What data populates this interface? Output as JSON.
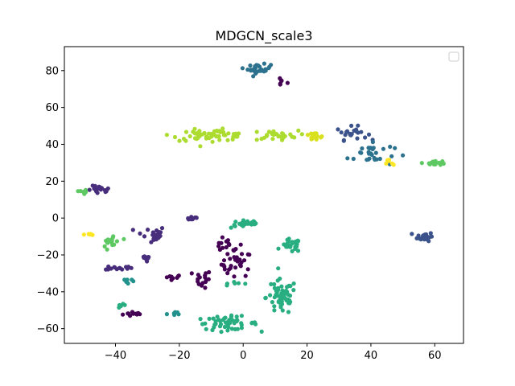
{
  "chart_data": {
    "type": "scatter",
    "title": "MDGCN_scale3",
    "xlim": [
      -56,
      69
    ],
    "ylim": [
      -68,
      93
    ],
    "xticks": [
      -40,
      -20,
      0,
      20,
      40,
      60
    ],
    "yticks": [
      -60,
      -40,
      -20,
      0,
      20,
      40,
      60,
      80
    ],
    "xtick_labels": [
      "−40",
      "−20",
      "0",
      "20",
      "40",
      "60"
    ],
    "ytick_labels": [
      "−60",
      "−40",
      "−20",
      "0",
      "20",
      "40",
      "60",
      "80"
    ],
    "legend": {
      "position": "top-right",
      "entries": []
    },
    "grid": false,
    "colormap": "viridis",
    "clusters": [
      {
        "label": 0,
        "color": "#440154",
        "center": [
          -34,
          -52
        ],
        "spread": [
          3,
          1.2
        ],
        "n": 12
      },
      {
        "label": 0,
        "color": "#440154",
        "center": [
          -22,
          -32
        ],
        "spread": [
          2.5,
          1
        ],
        "n": 8
      },
      {
        "label": 0,
        "color": "#440154",
        "center": [
          -2,
          -25
        ],
        "spread": [
          4,
          6
        ],
        "n": 28
      },
      {
        "label": 0,
        "color": "#440154",
        "center": [
          -13,
          -33
        ],
        "spread": [
          2.5,
          4
        ],
        "n": 16
      },
      {
        "label": 0,
        "color": "#440154",
        "center": [
          -5,
          -15
        ],
        "spread": [
          4,
          3
        ],
        "n": 14
      },
      {
        "label": 0,
        "color": "#440154",
        "center": [
          12,
          74
        ],
        "spread": [
          1.5,
          2
        ],
        "n": 6
      },
      {
        "label": 1,
        "color": "#472d7b",
        "center": [
          -45,
          15
        ],
        "spread": [
          3,
          2
        ],
        "n": 18
      },
      {
        "label": 1,
        "color": "#472d7b",
        "center": [
          -39,
          -27
        ],
        "spread": [
          3.5,
          1
        ],
        "n": 14
      },
      {
        "label": 1,
        "color": "#472d7b",
        "center": [
          -29,
          -9
        ],
        "spread": [
          4,
          4
        ],
        "n": 22
      },
      {
        "label": 1,
        "color": "#472d7b",
        "center": [
          -16,
          0
        ],
        "spread": [
          2,
          1
        ],
        "n": 10
      },
      {
        "label": 1,
        "color": "#472d7b",
        "center": [
          -30,
          -22
        ],
        "spread": [
          2,
          2
        ],
        "n": 10
      },
      {
        "label": 2,
        "color": "#3b528b",
        "center": [
          57,
          -10
        ],
        "spread": [
          2,
          2
        ],
        "n": 26
      },
      {
        "label": 2,
        "color": "#3b528b",
        "center": [
          34,
          46
        ],
        "spread": [
          4,
          3
        ],
        "n": 22
      },
      {
        "label": 3,
        "color": "#2c728e",
        "center": [
          40,
          35
        ],
        "spread": [
          6,
          6
        ],
        "n": 30
      },
      {
        "label": 3,
        "color": "#2c728e",
        "center": [
          5,
          81
        ],
        "spread": [
          3,
          2
        ],
        "n": 28
      },
      {
        "label": 4,
        "color": "#21918c",
        "center": [
          -22,
          -52
        ],
        "spread": [
          3,
          2
        ],
        "n": 6
      },
      {
        "label": 4,
        "color": "#21918c",
        "center": [
          -36,
          -34
        ],
        "spread": [
          2,
          2
        ],
        "n": 6
      },
      {
        "label": 5,
        "color": "#28ae80",
        "center": [
          -5,
          -57
        ],
        "spread": [
          8,
          3
        ],
        "n": 52
      },
      {
        "label": 5,
        "color": "#28ae80",
        "center": [
          1,
          -3
        ],
        "spread": [
          4,
          2
        ],
        "n": 26
      },
      {
        "label": 5,
        "color": "#28ae80",
        "center": [
          12,
          -43
        ],
        "spread": [
          4,
          8
        ],
        "n": 56
      },
      {
        "label": 5,
        "color": "#28ae80",
        "center": [
          15,
          -15
        ],
        "spread": [
          2.5,
          3
        ],
        "n": 24
      },
      {
        "label": 5,
        "color": "#28ae80",
        "center": [
          -38,
          -48
        ],
        "spread": [
          2,
          1
        ],
        "n": 6
      },
      {
        "label": 5,
        "color": "#28ae80",
        "center": [
          -1,
          -35
        ],
        "spread": [
          3,
          1
        ],
        "n": 6
      },
      {
        "label": 6,
        "color": "#5ec962",
        "center": [
          -41,
          -13
        ],
        "spread": [
          2.5,
          4
        ],
        "n": 18
      },
      {
        "label": 6,
        "color": "#5ec962",
        "center": [
          -50,
          14
        ],
        "spread": [
          1,
          1
        ],
        "n": 6
      },
      {
        "label": 6,
        "color": "#5ec962",
        "center": [
          60,
          30
        ],
        "spread": [
          3,
          1
        ],
        "n": 18
      },
      {
        "label": 7,
        "color": "#addc30",
        "center": [
          -10,
          45
        ],
        "spread": [
          10,
          2.5
        ],
        "n": 60
      },
      {
        "label": 7,
        "color": "#addc30",
        "center": [
          10,
          45
        ],
        "spread": [
          6,
          2
        ],
        "n": 26
      },
      {
        "label": 8,
        "color": "#d9e11f",
        "center": [
          22,
          44
        ],
        "spread": [
          3,
          2
        ],
        "n": 14
      },
      {
        "label": 8,
        "color": "#fde725",
        "center": [
          -48,
          -9
        ],
        "spread": [
          1.5,
          0.6
        ],
        "n": 6
      },
      {
        "label": 8,
        "color": "#fde725",
        "center": [
          46,
          30
        ],
        "spread": [
          1,
          2
        ],
        "n": 6
      }
    ]
  }
}
